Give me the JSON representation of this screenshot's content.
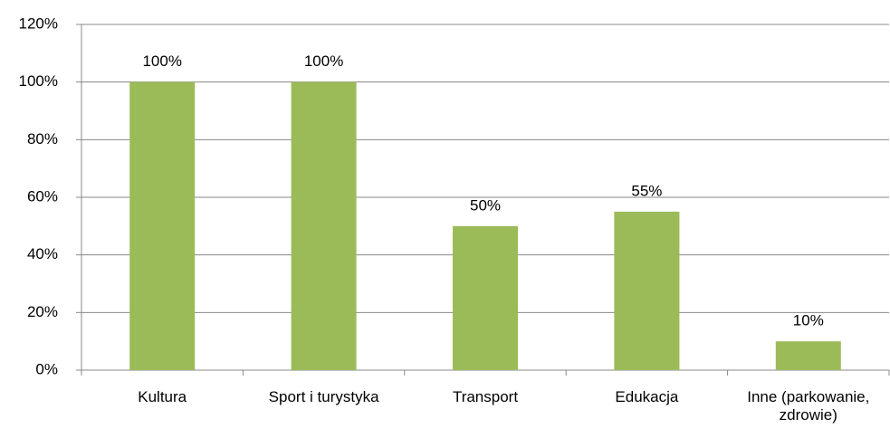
{
  "chart_data": {
    "type": "bar",
    "categories": [
      "Kultura",
      "Sport i turystyka",
      "Transport",
      "Edukacja",
      "Inne (parkowanie, zdrowie)"
    ],
    "values": [
      100,
      100,
      50,
      55,
      10
    ],
    "value_labels": [
      "100%",
      "100%",
      "50%",
      "55%",
      "10%"
    ],
    "color": "#9bbb59",
    "ylim": [
      0,
      120
    ],
    "yticks": [
      {
        "value": 0,
        "label": "0%"
      },
      {
        "value": 20,
        "label": "20%"
      },
      {
        "value": 40,
        "label": "40%"
      },
      {
        "value": 60,
        "label": "60%"
      },
      {
        "value": 80,
        "label": "80%"
      },
      {
        "value": 100,
        "label": "100%"
      },
      {
        "value": 120,
        "label": "120%"
      }
    ],
    "grid": true
  }
}
